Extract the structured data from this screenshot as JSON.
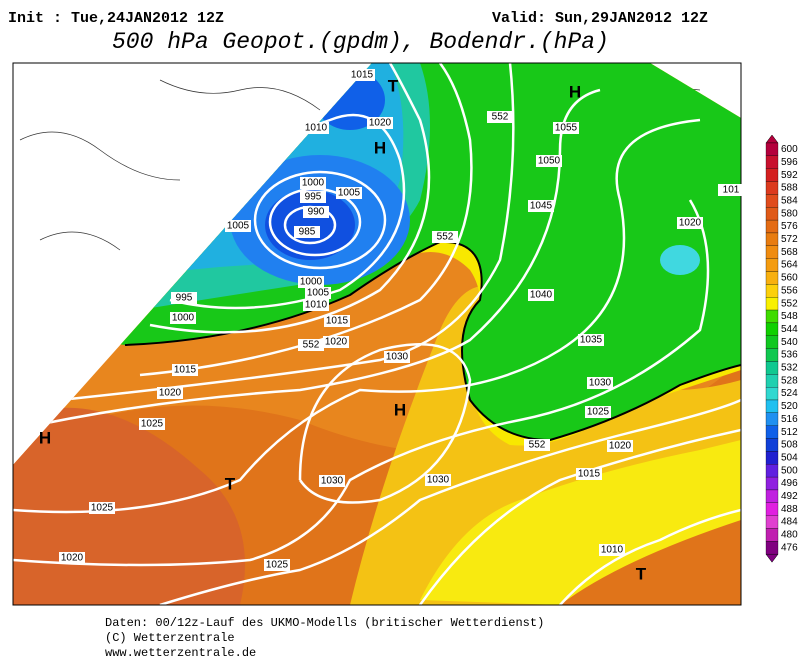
{
  "header": {
    "init": "Init : Tue,24JAN2012 12Z",
    "valid": "Valid: Sun,29JAN2012 12Z",
    "title": "500 hPa Geopot.(gpdm), Bodendr.(hPa)"
  },
  "map": {
    "labels": [
      "1015",
      "T",
      "H",
      "1010",
      "1020",
      "H",
      "1055",
      "1050",
      "1000",
      "995",
      "1005",
      "990",
      "1005",
      "985",
      "1045",
      "1020",
      "995",
      "1000",
      "1000",
      "1005",
      "1010",
      "1015",
      "1020",
      "1040",
      "1030",
      "1035",
      "1015",
      "1020",
      "1030",
      "H",
      "1025",
      "1025",
      "1020",
      "H",
      "T",
      "1030",
      "1030",
      "1015",
      "1025",
      "1010",
      "1020",
      "1025",
      "T",
      "552",
      "552",
      "552",
      "552",
      "101"
    ]
  },
  "colorbar": {
    "levels": [
      {
        "value": 600,
        "color": "#b4003c"
      },
      {
        "value": 596,
        "color": "#c8102e"
      },
      {
        "value": 592,
        "color": "#d42020"
      },
      {
        "value": 588,
        "color": "#dc3a1e"
      },
      {
        "value": 584,
        "color": "#e04c1c"
      },
      {
        "value": 580,
        "color": "#e05a18"
      },
      {
        "value": 576,
        "color": "#e46c14"
      },
      {
        "value": 572,
        "color": "#e87c10"
      },
      {
        "value": 568,
        "color": "#f08c10"
      },
      {
        "value": 564,
        "color": "#f49c10"
      },
      {
        "value": 560,
        "color": "#f8b010"
      },
      {
        "value": 556,
        "color": "#fcd00c"
      },
      {
        "value": 552,
        "color": "#f8f000"
      },
      {
        "value": 548,
        "color": "#40dc00"
      },
      {
        "value": 544,
        "color": "#10d000"
      },
      {
        "value": 540,
        "color": "#10c820"
      },
      {
        "value": 536,
        "color": "#10c850"
      },
      {
        "value": 532,
        "color": "#10c890"
      },
      {
        "value": 528,
        "color": "#20d0b0"
      },
      {
        "value": 524,
        "color": "#30d8d0"
      },
      {
        "value": 520,
        "color": "#20c0f0"
      },
      {
        "value": 516,
        "color": "#2090f0"
      },
      {
        "value": 512,
        "color": "#1060e8"
      },
      {
        "value": 508,
        "color": "#1040d8"
      },
      {
        "value": 504,
        "color": "#2020d0"
      },
      {
        "value": 500,
        "color": "#6020e0"
      },
      {
        "value": 496,
        "color": "#9020e0"
      },
      {
        "value": 492,
        "color": "#c020e0"
      },
      {
        "value": 488,
        "color": "#e020e0"
      },
      {
        "value": 484,
        "color": "#e040d0"
      },
      {
        "value": 480,
        "color": "#c020b0"
      },
      {
        "value": 476,
        "color": "#800080"
      }
    ]
  },
  "footer": {
    "lines": [
      "Daten: 00/12z-Lauf des UKMO-Modells (britischer Wetterdienst)",
      "(C) Wetterzentrale",
      "www.wetterzentrale.de"
    ]
  }
}
